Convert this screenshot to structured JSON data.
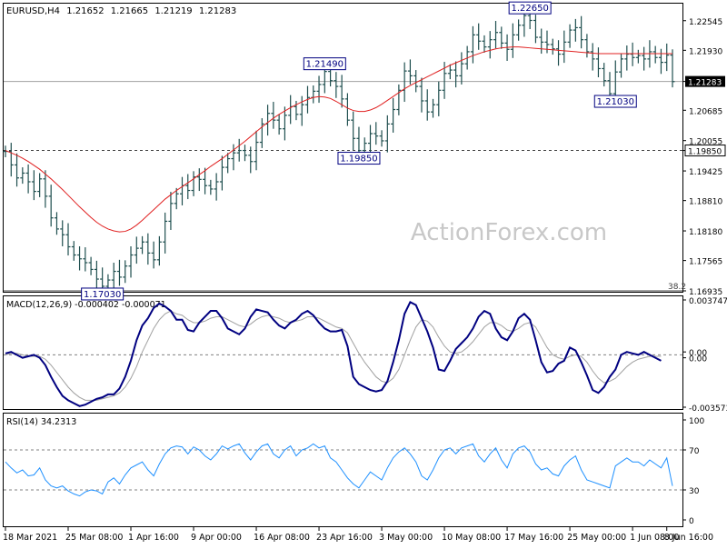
{
  "chart_data": {
    "type": "line",
    "symbol": "EURUSD",
    "timeframe": "H4",
    "header_values": [
      "1.21652",
      "1.21665",
      "1.21219",
      "1.21283"
    ],
    "watermark": "ActionForex.com",
    "price_panel": {
      "ylim": [
        1.16935,
        1.2288
      ],
      "ticks": [
        "1.22545",
        "1.21930",
        "1.21283",
        "1.20685",
        "1.20055",
        "1.19850",
        "1.19425",
        "1.18810",
        "1.18180",
        "1.17565",
        "1.16935"
      ],
      "tick_values": [
        1.22545,
        1.2193,
        1.21283,
        1.20685,
        1.20055,
        1.1985,
        1.19425,
        1.1881,
        1.1818,
        1.17565,
        1.16935
      ],
      "current_price": 1.21283,
      "current_price_label": "1.21283",
      "support_level": 1.1985,
      "support_label": "1.19850",
      "fib_label": "38.2",
      "annotations": [
        {
          "label": "1.17030",
          "x": 17,
          "y": 1.1703
        },
        {
          "label": "1.21490",
          "x": 56,
          "y": 1.2149
        },
        {
          "label": "1.19850",
          "x": 62,
          "y": 1.1985
        },
        {
          "label": "1.22650",
          "x": 92,
          "y": 1.2265
        },
        {
          "label": "1.21030",
          "x": 107,
          "y": 1.2103
        }
      ],
      "close": [
        1.1983,
        1.1955,
        1.1928,
        1.1938,
        1.192,
        1.19,
        1.1926,
        1.189,
        1.1845,
        1.1822,
        1.181,
        1.1785,
        1.1768,
        1.176,
        1.1752,
        1.1738,
        1.1718,
        1.1703,
        1.1716,
        1.1734,
        1.1722,
        1.1745,
        1.1768,
        1.1782,
        1.1795,
        1.1772,
        1.1758,
        1.1795,
        1.1838,
        1.1875,
        1.1895,
        1.1912,
        1.1902,
        1.193,
        1.1925,
        1.1912,
        1.1905,
        1.192,
        1.195,
        1.1968,
        1.198,
        1.1985,
        1.1975,
        1.1962,
        1.2002,
        1.204,
        1.2062,
        1.2048,
        1.203,
        1.2058,
        1.2076,
        1.206,
        1.208,
        1.2095,
        1.2108,
        1.2122,
        1.2149,
        1.213,
        1.2118,
        1.2092,
        1.2048,
        1.201,
        1.1985,
        1.2,
        1.202,
        1.2015,
        1.2005,
        1.204,
        1.207,
        1.211,
        1.215,
        1.214,
        1.2118,
        1.2088,
        1.2065,
        1.208,
        1.211,
        1.2145,
        1.2152,
        1.214,
        1.2165,
        1.219,
        1.2225,
        1.2212,
        1.22,
        1.2215,
        1.223,
        1.2208,
        1.2195,
        1.2225,
        1.2245,
        1.2265,
        1.2255,
        1.222,
        1.221,
        1.2205,
        1.2196,
        1.2185,
        1.221,
        1.2235,
        1.224,
        1.2215,
        1.219,
        1.2175,
        1.2155,
        1.213,
        1.2103,
        1.2148,
        1.2175,
        1.2185,
        1.2178,
        1.2182,
        1.2175,
        1.219,
        1.2178,
        1.2168,
        1.2183,
        1.2128
      ],
      "ma": [
        1.1985,
        1.198,
        1.1975,
        1.1969,
        1.1962,
        1.1954,
        1.1946,
        1.1936,
        1.1926,
        1.1915,
        1.1904,
        1.1892,
        1.188,
        1.1868,
        1.1857,
        1.1846,
        1.1836,
        1.1828,
        1.1822,
        1.1818,
        1.1816,
        1.1817,
        1.1822,
        1.183,
        1.184,
        1.1851,
        1.1862,
        1.1873,
        1.1884,
        1.1893,
        1.1902,
        1.191,
        1.1918,
        1.1926,
        1.1935,
        1.1943,
        1.1952,
        1.196,
        1.1968,
        1.1977,
        1.1986,
        1.1995,
        1.2004,
        1.2014,
        1.2024,
        1.2034,
        1.2043,
        1.2052,
        1.206,
        1.2067,
        1.2074,
        1.208,
        1.2086,
        1.2091,
        1.2095,
        1.2097,
        1.2096,
        1.2093,
        1.2087,
        1.208,
        1.2073,
        1.2068,
        1.2066,
        1.2066,
        1.2069,
        1.2074,
        1.2081,
        1.2089,
        1.2097,
        1.2105,
        1.2113,
        1.212,
        1.2126,
        1.2132,
        1.2138,
        1.2144,
        1.215,
        1.2156,
        1.2162,
        1.2167,
        1.2172,
        1.2177,
        1.2182,
        1.2186,
        1.219,
        1.2193,
        1.2196,
        1.2198,
        1.2199,
        1.22,
        1.22,
        1.2199,
        1.2198,
        1.2197,
        1.2196,
        1.2195,
        1.2194,
        1.2193,
        1.2192,
        1.2191,
        1.219,
        1.2189,
        1.2188,
        1.2187,
        1.2186,
        1.2186,
        1.2186,
        1.2186,
        1.2186,
        1.2186,
        1.2186,
        1.2186,
        1.2186,
        1.2186,
        1.2186,
        1.2186,
        1.2186,
        1.2186
      ]
    },
    "macd_panel": {
      "title": "MACD(12,26,9) -0.000402 -0.000071",
      "ylim": [
        -0.003573,
        0.003747
      ],
      "ticks": [
        "0.003747",
        "0.00",
        "0.00",
        "-0.003573"
      ],
      "tick_values": [
        0.003747,
        0.0002,
        -0.0002,
        -0.003573
      ],
      "macd": [
        0.0001,
        0.0002,
        0.0,
        -0.0002,
        -0.0001,
        0.0,
        -0.0002,
        -0.0007,
        -0.0015,
        -0.0022,
        -0.0028,
        -0.0031,
        -0.0033,
        -0.0035,
        -0.0034,
        -0.0032,
        -0.003,
        -0.0029,
        -0.0027,
        -0.0027,
        -0.0023,
        -0.0015,
        -0.0004,
        0.001,
        0.002,
        0.0025,
        0.0032,
        0.0035,
        0.0033,
        0.003,
        0.0024,
        0.0024,
        0.0017,
        0.0016,
        0.0022,
        0.0026,
        0.003,
        0.003,
        0.0025,
        0.0018,
        0.0016,
        0.0014,
        0.0018,
        0.0026,
        0.0031,
        0.003,
        0.0029,
        0.0024,
        0.002,
        0.0018,
        0.0022,
        0.0024,
        0.0028,
        0.003,
        0.0027,
        0.0022,
        0.0018,
        0.0016,
        0.0016,
        0.0017,
        0.0006,
        -0.0015,
        -0.002,
        -0.0022,
        -0.0024,
        -0.0025,
        -0.0024,
        -0.0018,
        -0.0005,
        0.001,
        0.0028,
        0.0036,
        0.0034,
        0.0025,
        0.0016,
        0.0005,
        -0.001,
        -0.0011,
        -0.0004,
        0.0004,
        0.0008,
        0.0012,
        0.0018,
        0.0026,
        0.003,
        0.0028,
        0.0018,
        0.0012,
        0.001,
        0.0016,
        0.0025,
        0.0028,
        0.0024,
        0.001,
        -0.0005,
        -0.0012,
        -0.0011,
        -0.0006,
        -0.0004,
        0.0005,
        0.0003,
        -0.0005,
        -0.0014,
        -0.0024,
        -0.0026,
        -0.0022,
        -0.0015,
        -0.001,
        0.0,
        0.0002,
        0.0001,
        0.0,
        0.0002,
        0.0,
        -0.0002,
        -0.0004
      ],
      "signal": [
        0.0,
        0.0001,
        0.0001,
        0.0,
        -0.0001,
        -0.0001,
        -0.0001,
        -0.0003,
        -0.0007,
        -0.0012,
        -0.0017,
        -0.0022,
        -0.0026,
        -0.0029,
        -0.0031,
        -0.0031,
        -0.0031,
        -0.003,
        -0.0029,
        -0.0028,
        -0.0026,
        -0.0022,
        -0.0016,
        -0.0008,
        0.0002,
        0.001,
        0.0018,
        0.0024,
        0.0028,
        0.003,
        0.0028,
        0.0027,
        0.0024,
        0.0022,
        0.0022,
        0.0023,
        0.0025,
        0.0026,
        0.0026,
        0.0024,
        0.0022,
        0.002,
        0.0019,
        0.0021,
        0.0024,
        0.0026,
        0.0027,
        0.0026,
        0.0025,
        0.0023,
        0.0022,
        0.0023,
        0.0024,
        0.0026,
        0.0026,
        0.0025,
        0.0023,
        0.0021,
        0.0019,
        0.0018,
        0.0015,
        0.0008,
        0.0001,
        -0.0005,
        -0.001,
        -0.0015,
        -0.0018,
        -0.0019,
        -0.0016,
        -0.001,
        0.0,
        0.001,
        0.0019,
        0.0024,
        0.0023,
        0.0019,
        0.0012,
        0.0006,
        0.0002,
        0.0001,
        0.0002,
        0.0005,
        0.0009,
        0.0014,
        0.0019,
        0.0022,
        0.0022,
        0.002,
        0.0017,
        0.0016,
        0.0018,
        0.0021,
        0.0022,
        0.0019,
        0.0012,
        0.0005,
        0.0,
        -0.0002,
        -0.0003,
        -0.0001,
        0.0,
        -0.0001,
        -0.0005,
        -0.0011,
        -0.0016,
        -0.0019,
        -0.0018,
        -0.0016,
        -0.0012,
        -0.0008,
        -0.0005,
        -0.0003,
        -0.0002,
        -0.0001,
        -0.0001,
        -0.0001
      ]
    },
    "rsi_panel": {
      "title": "RSI(14) 34.2313",
      "ylim": [
        0,
        100
      ],
      "ticks": [
        "100",
        "70",
        "30",
        "0"
      ],
      "tick_values": [
        100,
        70,
        30,
        0
      ],
      "levels": [
        70,
        30
      ],
      "values": [
        58,
        52,
        47,
        50,
        44,
        45,
        52,
        40,
        34,
        32,
        34,
        29,
        26,
        24,
        28,
        30,
        29,
        26,
        38,
        42,
        36,
        45,
        52,
        55,
        58,
        50,
        44,
        56,
        66,
        72,
        74,
        73,
        66,
        73,
        70,
        64,
        60,
        66,
        74,
        71,
        74,
        76,
        67,
        60,
        68,
        74,
        76,
        66,
        62,
        70,
        74,
        64,
        70,
        72,
        76,
        72,
        74,
        62,
        58,
        50,
        42,
        36,
        32,
        40,
        48,
        44,
        40,
        52,
        62,
        68,
        72,
        66,
        58,
        44,
        40,
        50,
        62,
        70,
        72,
        66,
        72,
        74,
        76,
        64,
        58,
        66,
        72,
        60,
        52,
        66,
        72,
        74,
        68,
        56,
        50,
        52,
        46,
        44,
        54,
        60,
        64,
        50,
        40,
        38,
        36,
        34,
        32,
        54,
        58,
        62,
        58,
        58,
        54,
        60,
        56,
        52,
        62,
        34
      ]
    },
    "x_axis": {
      "labels": [
        "18 Mar 2021",
        "25 Mar 08:00",
        "1 Apr 16:00",
        "9 Apr 00:00",
        "16 Apr 08:00",
        "23 Apr 16:00",
        "3 May 00:00",
        "10 May 08:00",
        "17 May 16:00",
        "25 May 00:00",
        "1 Jun 08:00",
        "8 Jun 16:00"
      ],
      "label_bars": [
        0,
        11,
        22,
        33,
        44,
        55,
        66,
        77,
        88,
        99,
        110,
        116
      ]
    },
    "colors": {
      "bars": "#1f4f4f",
      "ma": "#e02020",
      "macd": "#000080",
      "signal": "#a0a0a0",
      "rsi": "#1e90ff",
      "grid": "#808080",
      "annotation_box": "#000080"
    }
  }
}
